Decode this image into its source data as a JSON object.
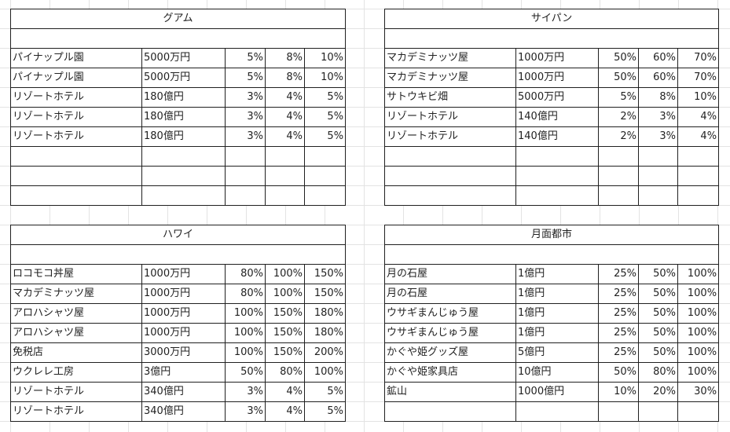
{
  "tables": {
    "guam": {
      "title": "グアム",
      "rows": [
        [
          "パイナップル園",
          "5000万円",
          "5%",
          "8%",
          "10%"
        ],
        [
          "パイナップル園",
          "5000万円",
          "5%",
          "8%",
          "10%"
        ],
        [
          "リゾートホテル",
          "180億円",
          "3%",
          "4%",
          "5%"
        ],
        [
          "リゾートホテル",
          "180億円",
          "3%",
          "4%",
          "5%"
        ],
        [
          "リゾートホテル",
          "180億円",
          "3%",
          "4%",
          "5%"
        ],
        [
          "",
          "",
          "",
          "",
          ""
        ],
        [
          "",
          "",
          "",
          "",
          ""
        ],
        [
          "",
          "",
          "",
          "",
          ""
        ]
      ]
    },
    "saipan": {
      "title": "サイパン",
      "rows": [
        [
          "マカデミナッツ屋",
          "1000万円",
          "50%",
          "60%",
          "70%"
        ],
        [
          "マカデミナッツ屋",
          "1000万円",
          "50%",
          "60%",
          "70%"
        ],
        [
          "サトウキビ畑",
          "5000万円",
          "5%",
          "8%",
          "10%"
        ],
        [
          "リゾートホテル",
          "140億円",
          "2%",
          "3%",
          "4%"
        ],
        [
          "リゾートホテル",
          "140億円",
          "2%",
          "3%",
          "4%"
        ],
        [
          "",
          "",
          "",
          "",
          ""
        ],
        [
          "",
          "",
          "",
          "",
          ""
        ],
        [
          "",
          "",
          "",
          "",
          ""
        ]
      ]
    },
    "hawaii": {
      "title": "ハワイ",
      "rows": [
        [
          "ロコモコ丼屋",
          "1000万円",
          "80%",
          "100%",
          "150%"
        ],
        [
          "マカデミナッツ屋",
          "1000万円",
          "80%",
          "100%",
          "150%"
        ],
        [
          "アロハシャツ屋",
          "1000万円",
          "100%",
          "150%",
          "180%"
        ],
        [
          "アロハシャツ屋",
          "1000万円",
          "100%",
          "150%",
          "180%"
        ],
        [
          "免税店",
          "3000万円",
          "100%",
          "150%",
          "200%"
        ],
        [
          "ウクレレ工房",
          "3億円",
          "50%",
          "80%",
          "100%"
        ],
        [
          "リゾートホテル",
          "340億円",
          "3%",
          "4%",
          "5%"
        ],
        [
          "リゾートホテル",
          "340億円",
          "3%",
          "4%",
          "5%"
        ]
      ]
    },
    "moon": {
      "title": "月面都市",
      "rows": [
        [
          "月の石屋",
          "1億円",
          "25%",
          "50%",
          "100%"
        ],
        [
          "月の石屋",
          "1億円",
          "25%",
          "50%",
          "100%"
        ],
        [
          "ウサギまんじゅう屋",
          "1億円",
          "25%",
          "50%",
          "100%"
        ],
        [
          "ウサギまんじゅう屋",
          "1億円",
          "25%",
          "50%",
          "100%"
        ],
        [
          "かぐや姫グッズ屋",
          "5億円",
          "25%",
          "50%",
          "100%"
        ],
        [
          "かぐや姫家具店",
          "10億円",
          "50%",
          "80%",
          "100%"
        ],
        [
          "鉱山",
          "1000億円",
          "10%",
          "20%",
          "30%"
        ],
        [
          "",
          "",
          "",
          "",
          ""
        ]
      ]
    }
  }
}
